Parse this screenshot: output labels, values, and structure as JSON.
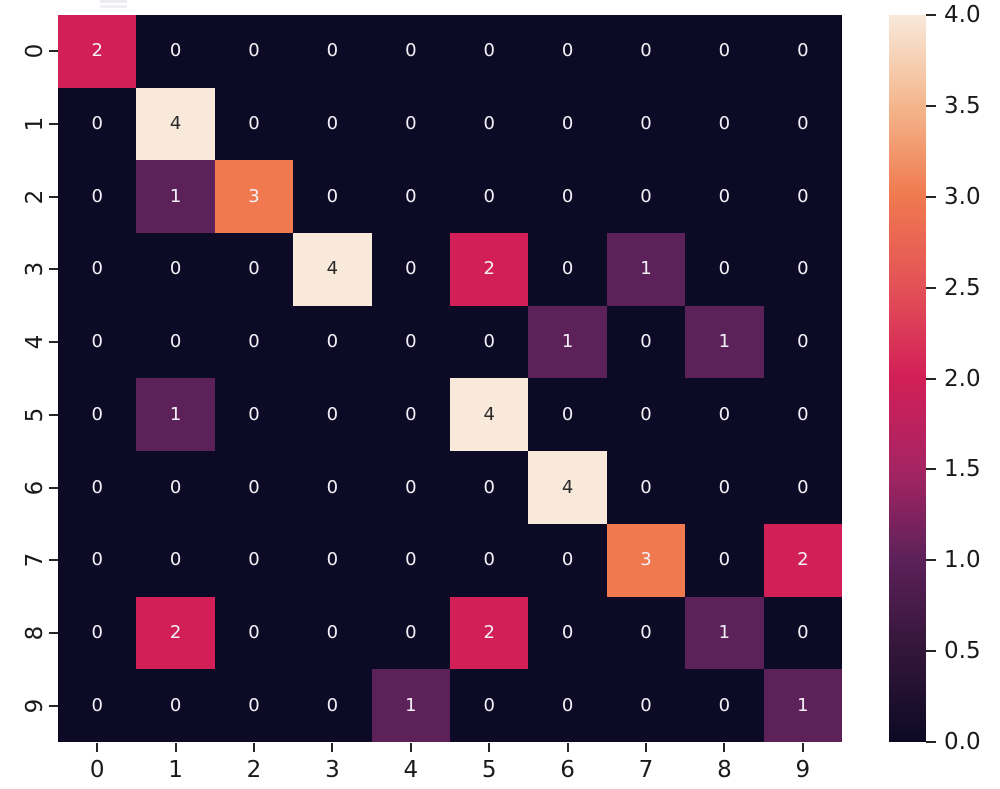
{
  "chart_data": {
    "type": "heatmap",
    "title": "",
    "xlabel": "",
    "ylabel": "",
    "x_tick_labels": [
      "0",
      "1",
      "2",
      "3",
      "4",
      "5",
      "6",
      "7",
      "8",
      "9"
    ],
    "y_tick_labels": [
      "0",
      "1",
      "2",
      "3",
      "4",
      "5",
      "6",
      "7",
      "8",
      "9"
    ],
    "matrix": [
      [
        2,
        0,
        0,
        0,
        0,
        0,
        0,
        0,
        0,
        0
      ],
      [
        0,
        4,
        0,
        0,
        0,
        0,
        0,
        0,
        0,
        0
      ],
      [
        0,
        1,
        3,
        0,
        0,
        0,
        0,
        0,
        0,
        0
      ],
      [
        0,
        0,
        0,
        4,
        0,
        2,
        0,
        1,
        0,
        0
      ],
      [
        0,
        0,
        0,
        0,
        0,
        0,
        1,
        0,
        1,
        0
      ],
      [
        0,
        1,
        0,
        0,
        0,
        4,
        0,
        0,
        0,
        0
      ],
      [
        0,
        0,
        0,
        0,
        0,
        0,
        4,
        0,
        0,
        0
      ],
      [
        0,
        0,
        0,
        0,
        0,
        0,
        0,
        3,
        0,
        2
      ],
      [
        0,
        2,
        0,
        0,
        0,
        2,
        0,
        0,
        1,
        0
      ],
      [
        0,
        0,
        0,
        0,
        1,
        0,
        0,
        0,
        0,
        1
      ]
    ],
    "vmin": 0,
    "vmax": 4,
    "colormap": "rocket",
    "grid": false,
    "value_colors": {
      "0": "#0c0a24",
      "1": "#5c2159",
      "2": "#d21f57",
      "3": "#f0794f",
      "4": "#f8e9db"
    },
    "annot_color_light": "#f2f0f7",
    "annot_color_dark": "#2a2a2a",
    "annot_dark_values": [
      4
    ],
    "colorbar": {
      "position": "right",
      "tick_labels": [
        "4.0",
        "3.5",
        "3.0",
        "2.5",
        "2.0",
        "1.5",
        "1.0",
        "0.5",
        "0.0"
      ],
      "tick_values": [
        4.0,
        3.5,
        3.0,
        2.5,
        2.0,
        1.5,
        1.0,
        0.5,
        0.0
      ],
      "gradient_stops": [
        {
          "pos": 0,
          "color": "#f8e9db"
        },
        {
          "pos": 12.5,
          "color": "#f4b68c"
        },
        {
          "pos": 25,
          "color": "#f0794f"
        },
        {
          "pos": 37.5,
          "color": "#e35157"
        },
        {
          "pos": 50,
          "color": "#d21f57"
        },
        {
          "pos": 62.5,
          "color": "#a62463"
        },
        {
          "pos": 75,
          "color": "#5c2159"
        },
        {
          "pos": 87.5,
          "color": "#331639"
        },
        {
          "pos": 100,
          "color": "#0c0a24"
        }
      ]
    }
  }
}
